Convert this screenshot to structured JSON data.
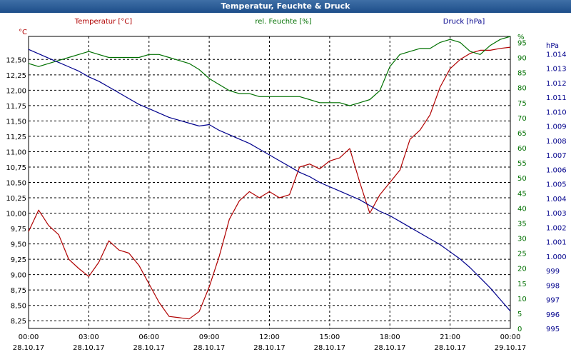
{
  "window": {
    "title": "Temperatur, Feuchte & Druck"
  },
  "chart_data": {
    "type": "line",
    "title": "Temperatur, Feuchte & Druck",
    "x_ticks": [
      {
        "time": "00:00",
        "date": "28.10.17"
      },
      {
        "time": "03:00",
        "date": "28.10.17"
      },
      {
        "time": "06:00",
        "date": "28.10.17"
      },
      {
        "time": "09:00",
        "date": "28.10.17"
      },
      {
        "time": "12:00",
        "date": "28.10.17"
      },
      {
        "time": "15:00",
        "date": "28.10.17"
      },
      {
        "time": "18:00",
        "date": "28.10.17"
      },
      {
        "time": "21:00",
        "date": "28.10.17"
      },
      {
        "time": "00:00",
        "date": "29.10.17"
      }
    ],
    "x_hours": [
      0,
      0.5,
      1,
      1.5,
      2,
      2.5,
      3,
      3.5,
      4,
      4.5,
      5,
      5.5,
      6,
      6.5,
      7,
      7.5,
      8,
      8.5,
      9,
      9.5,
      10,
      10.5,
      11,
      11.5,
      12,
      12.5,
      13,
      13.5,
      14,
      14.5,
      15,
      15.5,
      16,
      16.5,
      17,
      17.5,
      18,
      18.5,
      19,
      19.5,
      20,
      20.5,
      21,
      21.5,
      22,
      22.5,
      23,
      23.5,
      24
    ],
    "grid": true,
    "axes": {
      "temperature": {
        "label": "Temperatur [°C]",
        "unit": "°C",
        "color": "#b00000",
        "min": 8.125,
        "max": 12.875,
        "ticks": [
          "8,25",
          "8,50",
          "8,75",
          "9,00",
          "9,25",
          "9,50",
          "9,75",
          "10,00",
          "10,25",
          "10,50",
          "10,75",
          "11,00",
          "11,25",
          "11,50",
          "11,75",
          "12,00",
          "12,25",
          "12,50"
        ]
      },
      "humidity": {
        "label": "rel. Feuchte [%]",
        "unit": "%",
        "color": "#007000",
        "min": 0,
        "max": 97,
        "ticks": [
          "0",
          "5",
          "10",
          "15",
          "20",
          "25",
          "30",
          "35",
          "40",
          "45",
          "50",
          "55",
          "60",
          "65",
          "70",
          "75",
          "80",
          "85",
          "90",
          "95",
          "%"
        ]
      },
      "pressure": {
        "label": "Druck [hPa]",
        "unit": "hPa",
        "color": "#00008c",
        "min": 995,
        "max": 1015.2,
        "ticks": [
          "995",
          "996",
          "997",
          "998",
          "999",
          "1.000",
          "1.001",
          "1.002",
          "1.003",
          "1.004",
          "1.005",
          "1.006",
          "1.007",
          "1.008",
          "1.009",
          "1.010",
          "1.011",
          "1.012",
          "1.013",
          "1.014",
          "hPa"
        ]
      }
    },
    "series": [
      {
        "name": "Temperatur [°C]",
        "axis": "temperature",
        "color": "#b00000",
        "values": [
          9.7,
          10.05,
          9.8,
          9.65,
          9.25,
          9.1,
          8.97,
          9.2,
          9.55,
          9.4,
          9.35,
          9.15,
          8.85,
          8.55,
          8.32,
          8.3,
          8.28,
          8.4,
          8.8,
          9.3,
          9.9,
          10.2,
          10.35,
          10.25,
          10.35,
          10.25,
          10.3,
          10.75,
          10.8,
          10.72,
          10.85,
          10.9,
          11.05,
          10.5,
          10.0,
          10.3,
          10.5,
          10.7,
          11.2,
          11.35,
          11.6,
          12.05,
          12.35,
          12.5,
          12.6,
          12.65,
          12.65,
          12.68,
          12.7
        ]
      },
      {
        "name": "rel. Feuchte [%]",
        "axis": "humidity",
        "color": "#007000",
        "values": [
          88,
          87,
          88,
          89,
          90,
          91,
          92,
          91,
          90,
          90,
          90,
          90,
          91,
          91,
          90,
          89,
          88,
          86,
          83,
          81,
          79,
          78,
          78,
          77,
          77,
          77,
          77,
          77,
          76,
          75,
          75,
          75,
          74,
          75,
          76,
          79,
          87,
          91,
          92,
          93,
          93,
          95,
          96,
          95,
          92,
          91,
          94,
          96,
          97
        ]
      },
      {
        "name": "Druck [hPa]",
        "axis": "pressure",
        "color": "#00008c",
        "values": [
          1014.3,
          1014.0,
          1013.7,
          1013.4,
          1013.1,
          1012.8,
          1012.4,
          1012.1,
          1011.7,
          1011.3,
          1010.9,
          1010.5,
          1010.2,
          1009.9,
          1009.6,
          1009.4,
          1009.2,
          1009.0,
          1009.1,
          1008.7,
          1008.4,
          1008.1,
          1007.8,
          1007.4,
          1007.0,
          1006.6,
          1006.2,
          1005.8,
          1005.5,
          1005.1,
          1004.8,
          1004.5,
          1004.2,
          1003.9,
          1003.5,
          1003.1,
          1002.8,
          1002.4,
          1002.0,
          1001.6,
          1001.2,
          1000.8,
          1000.3,
          999.8,
          999.2,
          998.5,
          997.8,
          997.0,
          996.2
        ]
      }
    ]
  }
}
